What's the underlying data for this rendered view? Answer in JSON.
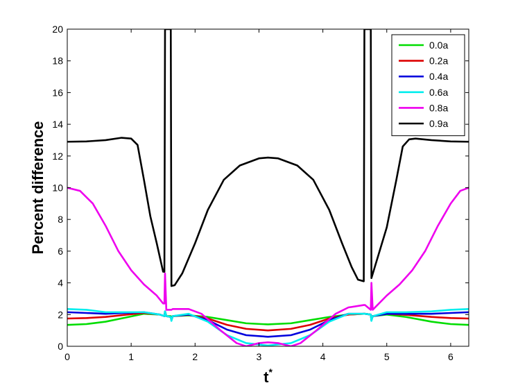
{
  "chart_data": {
    "type": "line",
    "title": "",
    "xlabel": "t",
    "xlabel_superscript": "*",
    "ylabel": "Percent difference",
    "xlim": [
      0,
      6.2832
    ],
    "ylim": [
      0,
      20
    ],
    "xticks": [
      0,
      1,
      2,
      3,
      4,
      5,
      6
    ],
    "yticks": [
      0,
      2,
      4,
      6,
      8,
      10,
      12,
      14,
      16,
      18,
      20
    ],
    "grid": false,
    "legend_position": "top-right",
    "series": [
      {
        "name": "0.0a",
        "color": "#00dd00",
        "points": [
          [
            0,
            1.35
          ],
          [
            0.3,
            1.4
          ],
          [
            0.6,
            1.55
          ],
          [
            0.9,
            1.8
          ],
          [
            1.2,
            2.05
          ],
          [
            1.45,
            2.0
          ],
          [
            1.52,
            1.9
          ],
          [
            1.53,
            2.2
          ],
          [
            1.55,
            1.9
          ],
          [
            1.62,
            1.9
          ],
          [
            1.63,
            1.65
          ],
          [
            1.65,
            1.9
          ],
          [
            1.9,
            1.95
          ],
          [
            2.2,
            1.85
          ],
          [
            2.5,
            1.65
          ],
          [
            2.8,
            1.45
          ],
          [
            3.14,
            1.38
          ],
          [
            3.5,
            1.45
          ],
          [
            3.8,
            1.65
          ],
          [
            4.1,
            1.85
          ],
          [
            4.4,
            2.0
          ],
          [
            4.64,
            2.05
          ],
          [
            4.66,
            2.05
          ],
          [
            4.75,
            2.0
          ],
          [
            4.76,
            1.65
          ],
          [
            4.78,
            1.9
          ],
          [
            5.0,
            2.0
          ],
          [
            5.3,
            1.85
          ],
          [
            5.7,
            1.55
          ],
          [
            6.0,
            1.4
          ],
          [
            6.2832,
            1.35
          ]
        ]
      },
      {
        "name": "0.2a",
        "color": "#dd0000",
        "points": [
          [
            0,
            1.75
          ],
          [
            0.3,
            1.78
          ],
          [
            0.6,
            1.85
          ],
          [
            0.9,
            1.98
          ],
          [
            1.2,
            2.1
          ],
          [
            1.45,
            2.0
          ],
          [
            1.52,
            1.9
          ],
          [
            1.53,
            2.2
          ],
          [
            1.55,
            1.9
          ],
          [
            1.62,
            1.85
          ],
          [
            1.63,
            1.65
          ],
          [
            1.65,
            1.9
          ],
          [
            1.9,
            1.98
          ],
          [
            2.2,
            1.75
          ],
          [
            2.5,
            1.35
          ],
          [
            2.8,
            1.1
          ],
          [
            3.14,
            1.0
          ],
          [
            3.5,
            1.1
          ],
          [
            3.8,
            1.35
          ],
          [
            4.1,
            1.75
          ],
          [
            4.4,
            2.0
          ],
          [
            4.64,
            2.05
          ],
          [
            4.66,
            2.05
          ],
          [
            4.75,
            2.0
          ],
          [
            4.76,
            1.65
          ],
          [
            4.78,
            1.9
          ],
          [
            5.0,
            2.05
          ],
          [
            5.3,
            1.98
          ],
          [
            5.7,
            1.85
          ],
          [
            6.0,
            1.78
          ],
          [
            6.2832,
            1.75
          ]
        ]
      },
      {
        "name": "0.4a",
        "color": "#0000dd",
        "points": [
          [
            0,
            2.15
          ],
          [
            0.3,
            2.1
          ],
          [
            0.6,
            2.05
          ],
          [
            0.9,
            2.1
          ],
          [
            1.2,
            2.15
          ],
          [
            1.45,
            2.0
          ],
          [
            1.52,
            1.9
          ],
          [
            1.53,
            2.2
          ],
          [
            1.55,
            1.9
          ],
          [
            1.62,
            1.85
          ],
          [
            1.63,
            1.65
          ],
          [
            1.65,
            1.9
          ],
          [
            1.9,
            2.0
          ],
          [
            2.2,
            1.65
          ],
          [
            2.5,
            1.05
          ],
          [
            2.8,
            0.7
          ],
          [
            3.14,
            0.6
          ],
          [
            3.5,
            0.7
          ],
          [
            3.8,
            1.05
          ],
          [
            4.1,
            1.65
          ],
          [
            4.4,
            2.05
          ],
          [
            4.64,
            2.05
          ],
          [
            4.66,
            2.05
          ],
          [
            4.75,
            2.0
          ],
          [
            4.76,
            1.65
          ],
          [
            4.78,
            1.9
          ],
          [
            5.0,
            2.05
          ],
          [
            5.3,
            2.05
          ],
          [
            5.7,
            2.05
          ],
          [
            6.0,
            2.1
          ],
          [
            6.2832,
            2.15
          ]
        ]
      },
      {
        "name": "0.6a",
        "color": "#00eeee",
        "points": [
          [
            0,
            2.35
          ],
          [
            0.3,
            2.3
          ],
          [
            0.6,
            2.15
          ],
          [
            0.9,
            2.15
          ],
          [
            1.2,
            2.15
          ],
          [
            1.45,
            2.0
          ],
          [
            1.52,
            1.9
          ],
          [
            1.53,
            2.2
          ],
          [
            1.55,
            1.9
          ],
          [
            1.62,
            1.85
          ],
          [
            1.63,
            1.6
          ],
          [
            1.65,
            1.9
          ],
          [
            1.9,
            2.05
          ],
          [
            2.2,
            1.55
          ],
          [
            2.5,
            0.7
          ],
          [
            2.8,
            0.2
          ],
          [
            3.14,
            0.05
          ],
          [
            3.5,
            0.2
          ],
          [
            3.8,
            0.7
          ],
          [
            4.1,
            1.55
          ],
          [
            4.4,
            2.05
          ],
          [
            4.64,
            2.05
          ],
          [
            4.66,
            2.05
          ],
          [
            4.75,
            2.0
          ],
          [
            4.76,
            1.6
          ],
          [
            4.78,
            1.9
          ],
          [
            5.0,
            2.15
          ],
          [
            5.3,
            2.15
          ],
          [
            5.7,
            2.2
          ],
          [
            6.0,
            2.3
          ],
          [
            6.2832,
            2.35
          ]
        ]
      },
      {
        "name": "0.8a",
        "color": "#ee00ee",
        "points": [
          [
            0,
            10.0
          ],
          [
            0.2,
            9.8
          ],
          [
            0.4,
            9.0
          ],
          [
            0.6,
            7.6
          ],
          [
            0.8,
            6.0
          ],
          [
            1.0,
            4.8
          ],
          [
            1.2,
            3.9
          ],
          [
            1.4,
            3.2
          ],
          [
            1.5,
            2.7
          ],
          [
            1.52,
            2.7
          ],
          [
            1.53,
            4.6
          ],
          [
            1.55,
            2.3
          ],
          [
            1.62,
            2.3
          ],
          [
            1.63,
            2.3
          ],
          [
            1.65,
            2.35
          ],
          [
            1.9,
            2.35
          ],
          [
            2.1,
            2.05
          ],
          [
            2.4,
            1.0
          ],
          [
            2.65,
            0.2
          ],
          [
            2.8,
            0.0
          ],
          [
            3.0,
            0.2
          ],
          [
            3.14,
            0.25
          ],
          [
            3.3,
            0.2
          ],
          [
            3.5,
            0.0
          ],
          [
            3.65,
            0.2
          ],
          [
            3.9,
            1.0
          ],
          [
            4.2,
            2.05
          ],
          [
            4.4,
            2.45
          ],
          [
            4.64,
            2.6
          ],
          [
            4.66,
            2.6
          ],
          [
            4.75,
            2.3
          ],
          [
            4.76,
            4.0
          ],
          [
            4.78,
            2.3
          ],
          [
            5.0,
            3.2
          ],
          [
            5.2,
            3.9
          ],
          [
            5.4,
            4.8
          ],
          [
            5.6,
            6.0
          ],
          [
            5.8,
            7.6
          ],
          [
            6.0,
            9.0
          ],
          [
            6.15,
            9.8
          ],
          [
            6.2832,
            10.0
          ]
        ]
      },
      {
        "name": "0.9a",
        "color": "#000000",
        "points": [
          [
            0,
            12.9
          ],
          [
            0.3,
            12.92
          ],
          [
            0.6,
            13.0
          ],
          [
            0.85,
            13.15
          ],
          [
            1.0,
            13.1
          ],
          [
            1.1,
            12.7
          ],
          [
            1.2,
            10.5
          ],
          [
            1.3,
            8.2
          ],
          [
            1.4,
            6.5
          ],
          [
            1.5,
            4.7
          ],
          [
            1.52,
            4.7
          ],
          [
            1.53,
            20.0
          ],
          [
            1.55,
            20.0
          ],
          [
            1.62,
            20.0
          ],
          [
            1.63,
            3.8
          ],
          [
            1.68,
            3.85
          ],
          [
            1.8,
            4.6
          ],
          [
            2.0,
            6.5
          ],
          [
            2.2,
            8.6
          ],
          [
            2.45,
            10.5
          ],
          [
            2.7,
            11.4
          ],
          [
            3.0,
            11.85
          ],
          [
            3.14,
            11.9
          ],
          [
            3.3,
            11.85
          ],
          [
            3.6,
            11.4
          ],
          [
            3.85,
            10.5
          ],
          [
            4.1,
            8.6
          ],
          [
            4.3,
            6.5
          ],
          [
            4.45,
            5.0
          ],
          [
            4.55,
            4.2
          ],
          [
            4.64,
            4.1
          ],
          [
            4.65,
            20.0
          ],
          [
            4.75,
            20.0
          ],
          [
            4.76,
            4.3
          ],
          [
            4.85,
            5.5
          ],
          [
            5.0,
            7.5
          ],
          [
            5.15,
            10.5
          ],
          [
            5.25,
            12.6
          ],
          [
            5.35,
            13.05
          ],
          [
            5.45,
            13.1
          ],
          [
            5.7,
            13.0
          ],
          [
            6.0,
            12.92
          ],
          [
            6.2832,
            12.9
          ]
        ]
      }
    ]
  }
}
